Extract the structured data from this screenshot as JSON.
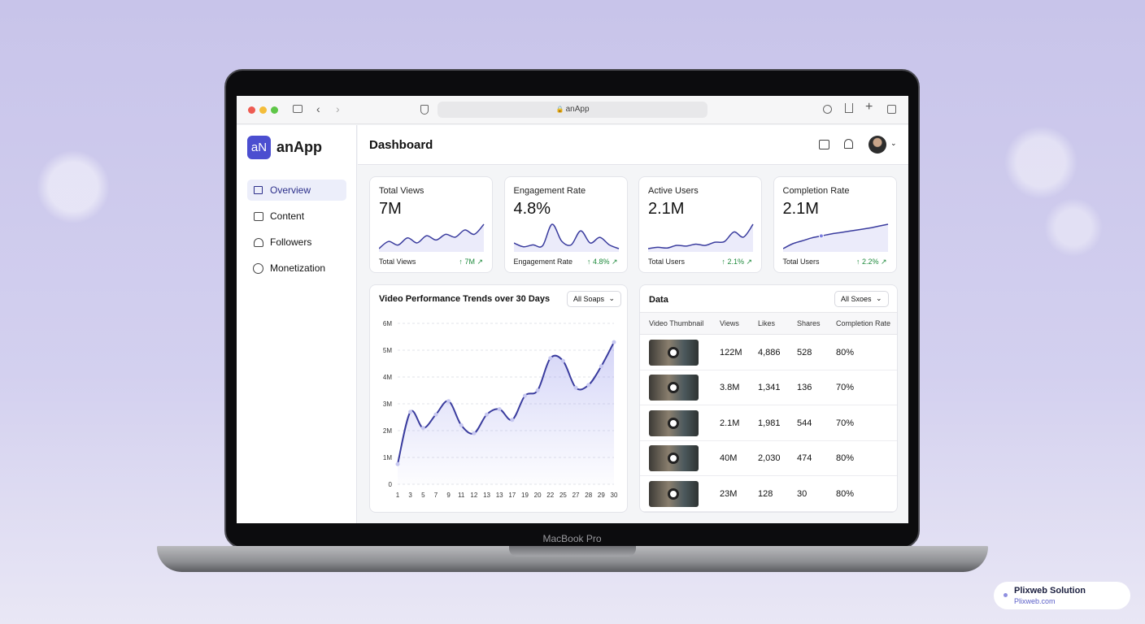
{
  "browser": {
    "url": "anApp"
  },
  "sidebar": {
    "logo": "aN",
    "app_name": "anApp",
    "nav": [
      "Overview",
      "Content",
      "Followers",
      "Monetization"
    ]
  },
  "header": {
    "title": "Dashboard"
  },
  "cards": [
    {
      "title": "Total Views",
      "value": "7M",
      "label": "Total Views",
      "change": "7M",
      "trend": [
        3,
        4,
        3.5,
        4.5,
        3.8,
        4.8,
        4.2,
        5,
        4.6,
        5.6,
        5,
        6.4
      ]
    },
    {
      "title": "Engagement Rate",
      "value": "4.8%",
      "label": "Engagement Rate",
      "change": "4.8%",
      "trend": [
        4,
        3.6,
        3.8,
        3.7,
        6,
        4.2,
        3.8,
        5.3,
        4,
        4.6,
        3.8,
        3.4
      ]
    },
    {
      "title": "Active Users",
      "value": "2.1M",
      "label": "Total Users",
      "change": "2.1%",
      "trend": [
        3,
        3.2,
        3.1,
        3.5,
        3.4,
        3.7,
        3.5,
        4,
        4.1,
        5.6,
        4.8,
        6.8
      ]
    },
    {
      "title": "Completion Rate",
      "value": "2.1M",
      "label": "Total Users",
      "change": "2.2%",
      "trend": [
        2,
        3,
        3.6,
        4.2,
        4.6,
        5,
        5.3,
        5.6,
        5.9,
        6.2,
        6.6,
        7
      ]
    }
  ],
  "chart": {
    "type": "line",
    "title": "Video Performance Trends over 30 Days",
    "filter": "All Soaps",
    "color": "#3a3c9e",
    "categories": [
      "1",
      "3",
      "5",
      "7",
      "9",
      "11",
      "12",
      "13",
      "13",
      "17",
      "19",
      "20",
      "22",
      "25",
      "27",
      "28",
      "29",
      "30"
    ],
    "values": [
      0.75,
      2.7,
      2.1,
      2.6,
      3.1,
      2.2,
      1.9,
      2.6,
      2.8,
      2.4,
      3.3,
      3.5,
      4.7,
      4.6,
      3.6,
      3.7,
      4.4,
      5.3
    ],
    "ylim": [
      0,
      6
    ],
    "yticks": [
      0,
      {
        "value": 1,
        "label": "1M"
      },
      {
        "value": 2,
        "label": "2M"
      },
      {
        "value": 3,
        "label": "3M"
      },
      {
        "value": 4,
        "label": "4M"
      },
      {
        "value": 5,
        "label": "5M"
      },
      {
        "value": 6,
        "label": "6M"
      }
    ]
  },
  "table": {
    "title": "Data",
    "filter": "All Sxoes",
    "columns": [
      "Video Thumbnail",
      "Views",
      "Likes",
      "Shares",
      "Completion Rate"
    ],
    "rows": [
      [
        "122M",
        "4,886",
        "528",
        "80%"
      ],
      [
        "3.8M",
        "1,341",
        "136",
        "70%"
      ],
      [
        "2.1M",
        "1,981",
        "544",
        "70%"
      ],
      [
        "40M",
        "2,030",
        "474",
        "80%"
      ],
      [
        "23M",
        "128",
        "30",
        "80%"
      ]
    ]
  },
  "device": "MacBook Pro",
  "badge": {
    "name": "Plixweb Solution",
    "site": "Plixweb.com"
  }
}
